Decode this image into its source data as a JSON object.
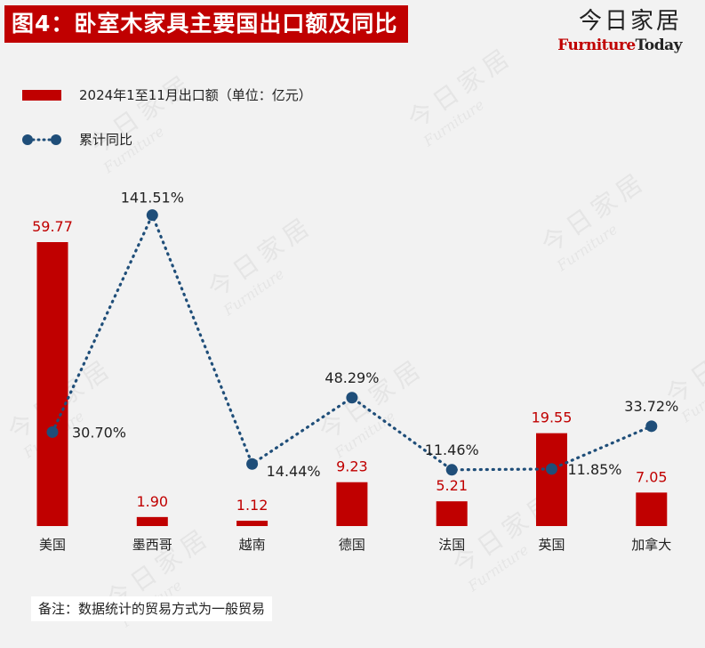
{
  "header": {
    "title": "图4：卧室木家具主要国出口额及同比",
    "brand_cn": "今日家居",
    "brand_en_part1": "Furniture",
    "brand_en_part2": "Today"
  },
  "legend": {
    "bar_label": "2024年1至11月出口额（单位：亿元）",
    "line_label": "累计同比"
  },
  "note": "备注：数据统计的贸易方式为一般贸易",
  "colors": {
    "bar": "#c00000",
    "line": "#1f4e79",
    "bar_label": "#c00000",
    "line_label": "#222222"
  },
  "chart_data": {
    "type": "bar",
    "categories": [
      "美国",
      "墨西哥",
      "越南",
      "德国",
      "法国",
      "英国",
      "加拿大"
    ],
    "series": [
      {
        "name": "2024年1至11月出口额（单位：亿元）",
        "type": "bar",
        "values": [
          59.77,
          1.9,
          1.12,
          9.23,
          5.21,
          19.55,
          7.05
        ],
        "labels": [
          "59.77",
          "1.90",
          "1.12",
          "9.23",
          "5.21",
          "19.55",
          "7.05"
        ]
      },
      {
        "name": "累计同比",
        "type": "line",
        "style": "dotted",
        "values": [
          30.7,
          141.51,
          14.44,
          48.29,
          11.46,
          11.85,
          33.72
        ],
        "labels": [
          "30.70%",
          "141.51%",
          "14.44%",
          "48.29%",
          "11.46%",
          "11.85%",
          "33.72%"
        ]
      }
    ],
    "axes_visible": false,
    "grid": false,
    "legend_position": "top-left"
  }
}
